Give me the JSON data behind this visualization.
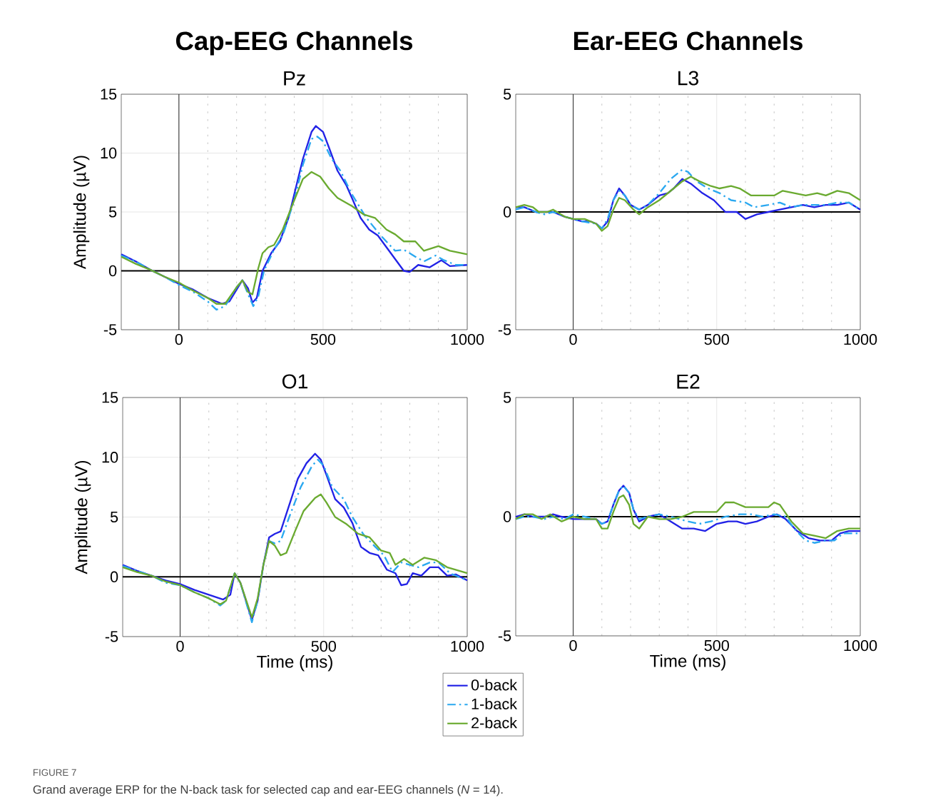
{
  "chart_data": [
    {
      "type": "line",
      "title": "Cap-EEG Channels",
      "subtitle": "Pz",
      "ylabel": "Amplitude (µV)",
      "xlim": [
        -200,
        1000
      ],
      "xticks": [
        0,
        500,
        1000
      ],
      "ylim": [
        -5,
        15
      ],
      "yticks": [
        -5,
        0,
        5,
        10,
        15
      ],
      "grid": true,
      "ref_lines": [
        {
          "axis": "x",
          "value": 0
        },
        {
          "axis": "y",
          "value": 0
        }
      ],
      "series": [
        {
          "color": "#2222e6",
          "line_style": "solid",
          "x": [
            -200,
            -150,
            -100,
            -50,
            0,
            50,
            100,
            150,
            175,
            200,
            220,
            240,
            255,
            270,
            290,
            320,
            350,
            380,
            400,
            430,
            460,
            475,
            500,
            520,
            550,
            580,
            600,
            630,
            660,
            690,
            720,
            750,
            780,
            800,
            830,
            870,
            910,
            940,
            1000
          ],
          "values": [
            1.4,
            0.8,
            0.1,
            -0.5,
            -1.1,
            -1.6,
            -2.3,
            -2.8,
            -2.6,
            -1.6,
            -0.8,
            -1.5,
            -2.7,
            -2.3,
            0.0,
            1.5,
            2.5,
            4.5,
            6.5,
            9.5,
            11.8,
            12.3,
            11.8,
            10.5,
            8.5,
            7.3,
            6.2,
            4.5,
            3.5,
            3.0,
            2.0,
            1.0,
            0.0,
            -0.1,
            0.5,
            0.3,
            0.9,
            0.4,
            0.5
          ]
        },
        {
          "color": "#2aa8f0",
          "line_style": "dashed",
          "x": [
            -200,
            -150,
            -100,
            -50,
            0,
            50,
            100,
            130,
            160,
            200,
            220,
            240,
            258,
            275,
            295,
            330,
            360,
            400,
            430,
            460,
            480,
            500,
            530,
            560,
            600,
            650,
            700,
            750,
            780,
            820,
            850,
            890,
            920,
            960,
            1000
          ],
          "values": [
            1.3,
            0.8,
            0.1,
            -0.5,
            -1.2,
            -1.8,
            -2.6,
            -3.3,
            -3.0,
            -1.4,
            -0.8,
            -2.0,
            -3.0,
            -2.2,
            0.0,
            1.8,
            3.0,
            6.0,
            9.0,
            11.2,
            11.4,
            11.0,
            9.5,
            8.5,
            6.5,
            4.5,
            3.0,
            1.7,
            1.8,
            1.2,
            0.8,
            1.3,
            0.9,
            0.5,
            0.5
          ]
        },
        {
          "color": "#6aaa30",
          "line_style": "solid",
          "x": [
            -200,
            -150,
            -100,
            -50,
            0,
            50,
            100,
            130,
            160,
            200,
            220,
            240,
            255,
            275,
            290,
            310,
            330,
            360,
            400,
            430,
            460,
            490,
            520,
            550,
            600,
            640,
            680,
            720,
            750,
            780,
            820,
            850,
            900,
            940,
            1000
          ],
          "values": [
            1.2,
            0.6,
            0.1,
            -0.5,
            -1.0,
            -1.7,
            -2.3,
            -2.8,
            -2.8,
            -1.4,
            -0.8,
            -1.8,
            -2.0,
            0.2,
            1.5,
            2.0,
            2.2,
            3.5,
            6.0,
            7.8,
            8.4,
            8.0,
            7.0,
            6.2,
            5.5,
            4.8,
            4.5,
            3.5,
            3.1,
            2.5,
            2.5,
            1.7,
            2.1,
            1.7,
            1.4
          ]
        }
      ]
    },
    {
      "type": "line",
      "title": "Ear-EEG Channels",
      "subtitle": "L3",
      "xlim": [
        -200,
        1000
      ],
      "xticks": [
        0,
        500,
        1000
      ],
      "ylim": [
        -5,
        5
      ],
      "yticks": [
        -5,
        0,
        5
      ],
      "grid": true,
      "ref_lines": [
        {
          "axis": "x",
          "value": 0
        },
        {
          "axis": "y",
          "value": 0
        }
      ],
      "series": [
        {
          "color": "#2222e6",
          "line_style": "solid",
          "x": [
            -200,
            -170,
            -130,
            -100,
            -70,
            -30,
            0,
            30,
            60,
            80,
            100,
            120,
            140,
            160,
            180,
            200,
            230,
            260,
            300,
            330,
            350,
            380,
            410,
            450,
            490,
            530,
            570,
            600,
            640,
            680,
            720,
            760,
            800,
            840,
            880,
            920,
            960,
            1000
          ],
          "values": [
            0.2,
            0.2,
            0.0,
            0.0,
            0.0,
            -0.2,
            -0.3,
            -0.4,
            -0.4,
            -0.5,
            -0.7,
            -0.4,
            0.5,
            1.0,
            0.7,
            0.3,
            0.1,
            0.3,
            0.7,
            0.8,
            1.0,
            1.4,
            1.2,
            0.8,
            0.5,
            0.0,
            0.0,
            -0.3,
            -0.1,
            0.0,
            0.1,
            0.2,
            0.3,
            0.2,
            0.3,
            0.3,
            0.4,
            0.1
          ]
        },
        {
          "color": "#2aa8f0",
          "line_style": "dashed",
          "x": [
            -200,
            -170,
            -130,
            -100,
            -70,
            -30,
            0,
            30,
            80,
            100,
            120,
            140,
            160,
            180,
            200,
            230,
            260,
            300,
            340,
            380,
            400,
            430,
            470,
            510,
            550,
            600,
            630,
            680,
            720,
            760,
            800,
            840,
            880,
            920,
            960,
            1000
          ],
          "values": [
            0.1,
            0.2,
            0.0,
            -0.1,
            0.0,
            -0.2,
            -0.3,
            -0.4,
            -0.5,
            -0.7,
            -0.3,
            0.5,
            0.9,
            0.7,
            0.3,
            0.1,
            0.3,
            0.8,
            1.4,
            1.8,
            1.7,
            1.3,
            1.0,
            0.8,
            0.5,
            0.4,
            0.2,
            0.3,
            0.4,
            0.2,
            0.3,
            0.3,
            0.3,
            0.4,
            0.4,
            0.1
          ]
        },
        {
          "color": "#6aaa30",
          "line_style": "solid",
          "x": [
            -200,
            -170,
            -140,
            -120,
            -90,
            -70,
            -30,
            0,
            40,
            80,
            100,
            120,
            140,
            160,
            180,
            210,
            230,
            260,
            300,
            350,
            380,
            410,
            440,
            480,
            510,
            550,
            580,
            620,
            660,
            700,
            730,
            770,
            810,
            850,
            880,
            920,
            960,
            1000
          ],
          "values": [
            0.2,
            0.3,
            0.2,
            0.0,
            0.0,
            0.1,
            -0.2,
            -0.3,
            -0.3,
            -0.5,
            -0.8,
            -0.6,
            0.1,
            0.6,
            0.5,
            0.1,
            -0.1,
            0.2,
            0.5,
            1.0,
            1.3,
            1.5,
            1.3,
            1.1,
            1.0,
            1.1,
            1.0,
            0.7,
            0.7,
            0.7,
            0.9,
            0.8,
            0.7,
            0.8,
            0.7,
            0.9,
            0.8,
            0.5
          ]
        }
      ]
    },
    {
      "type": "line",
      "subtitle": "O1",
      "xlabel": "Time (ms)",
      "ylabel": "Amplitude (µV)",
      "xlim": [
        -200,
        1000
      ],
      "xticks": [
        0,
        500,
        1000
      ],
      "ylim": [
        -5,
        15
      ],
      "yticks": [
        -5,
        0,
        5,
        10,
        15
      ],
      "grid": true,
      "legend": "bottom",
      "ref_lines": [
        {
          "axis": "x",
          "value": 0
        },
        {
          "axis": "y",
          "value": 0
        }
      ],
      "series": [
        {
          "name": "0-back",
          "color": "#2222e6",
          "line_style": "solid",
          "x": [
            -200,
            -150,
            -100,
            -50,
            0,
            50,
            100,
            150,
            175,
            190,
            210,
            250,
            270,
            290,
            310,
            330,
            350,
            380,
            410,
            440,
            470,
            490,
            510,
            540,
            570,
            600,
            630,
            660,
            690,
            720,
            750,
            770,
            790,
            810,
            840,
            870,
            900,
            930,
            960,
            1000
          ],
          "values": [
            1.0,
            0.5,
            0.1,
            -0.3,
            -0.6,
            -1.1,
            -1.5,
            -1.9,
            -1.5,
            0.3,
            -0.5,
            -3.6,
            -2.0,
            1.0,
            3.3,
            3.6,
            3.8,
            6.0,
            8.2,
            9.5,
            10.3,
            9.8,
            8.5,
            6.5,
            5.8,
            4.5,
            2.5,
            2.0,
            1.8,
            0.6,
            0.3,
            -0.7,
            -0.6,
            0.3,
            0.1,
            0.8,
            0.8,
            0.1,
            0.2,
            -0.3
          ]
        },
        {
          "name": "1-back",
          "color": "#2aa8f0",
          "line_style": "dashed",
          "x": [
            -200,
            -150,
            -100,
            -50,
            0,
            50,
            100,
            140,
            160,
            190,
            210,
            250,
            270,
            290,
            310,
            330,
            350,
            380,
            420,
            460,
            480,
            500,
            530,
            570,
            600,
            640,
            680,
            710,
            740,
            770,
            800,
            830,
            870,
            900,
            940,
            1000
          ],
          "values": [
            0.9,
            0.5,
            0.1,
            -0.5,
            -0.7,
            -1.3,
            -1.8,
            -2.4,
            -2.0,
            0.3,
            -0.5,
            -3.8,
            -2.0,
            1.0,
            3.0,
            2.8,
            3.0,
            5.0,
            7.5,
            9.3,
            9.8,
            9.3,
            7.5,
            6.5,
            5.0,
            3.5,
            2.5,
            1.8,
            0.4,
            1.2,
            1.0,
            0.8,
            1.2,
            1.2,
            0.3,
            -0.3
          ]
        },
        {
          "name": "2-back",
          "color": "#6aaa30",
          "line_style": "solid",
          "x": [
            -200,
            -150,
            -100,
            -50,
            0,
            50,
            100,
            140,
            160,
            190,
            210,
            250,
            270,
            290,
            310,
            330,
            350,
            370,
            400,
            430,
            470,
            490,
            510,
            540,
            580,
            620,
            660,
            700,
            730,
            750,
            780,
            810,
            850,
            890,
            930,
            1000
          ],
          "values": [
            0.8,
            0.4,
            0.1,
            -0.4,
            -0.7,
            -1.3,
            -1.8,
            -2.3,
            -2.0,
            0.3,
            -0.5,
            -3.4,
            -1.8,
            1.0,
            3.0,
            2.6,
            1.8,
            2.0,
            3.8,
            5.5,
            6.6,
            6.9,
            6.2,
            5.0,
            4.4,
            3.6,
            3.3,
            2.2,
            2.0,
            1.0,
            1.5,
            1.0,
            1.6,
            1.4,
            0.8,
            0.3
          ]
        }
      ]
    },
    {
      "type": "line",
      "subtitle": "E2",
      "xlabel": "Time (ms)",
      "xlim": [
        -200,
        1000
      ],
      "xticks": [
        0,
        500,
        1000
      ],
      "ylim": [
        -5,
        5
      ],
      "yticks": [
        -5,
        0,
        5
      ],
      "grid": true,
      "ref_lines": [
        {
          "axis": "x",
          "value": 0
        },
        {
          "axis": "y",
          "value": 0
        }
      ],
      "annotations": [
        "FIGURE 7",
        "Grand average ERP for the N-back task for selected cap and ear-EEG channels (*N* = 14)."
      ],
      "series": [
        {
          "color": "#2222e6",
          "line_style": "solid",
          "x": [
            -200,
            -170,
            -140,
            -100,
            -70,
            -40,
            0,
            40,
            80,
            100,
            120,
            140,
            160,
            175,
            195,
            210,
            230,
            260,
            300,
            340,
            380,
            420,
            460,
            500,
            540,
            570,
            600,
            640,
            680,
            710,
            740,
            780,
            820,
            860,
            900,
            930,
            960,
            1000
          ],
          "values": [
            0.0,
            0.1,
            0.0,
            0.0,
            0.1,
            0.0,
            -0.1,
            -0.1,
            -0.1,
            -0.3,
            -0.2,
            0.5,
            1.1,
            1.3,
            1.0,
            0.3,
            -0.2,
            0.0,
            0.1,
            -0.2,
            -0.5,
            -0.5,
            -0.6,
            -0.3,
            -0.2,
            -0.2,
            -0.3,
            -0.2,
            0.0,
            0.1,
            -0.1,
            -0.6,
            -0.9,
            -1.0,
            -1.0,
            -0.7,
            -0.6,
            -0.6
          ]
        },
        {
          "color": "#2aa8f0",
          "line_style": "dashed",
          "x": [
            -200,
            -170,
            -140,
            -100,
            -70,
            -30,
            0,
            40,
            80,
            100,
            120,
            140,
            160,
            175,
            195,
            210,
            230,
            260,
            300,
            340,
            400,
            440,
            480,
            530,
            580,
            620,
            660,
            700,
            740,
            770,
            810,
            840,
            880,
            910,
            940,
            1000
          ],
          "values": [
            -0.1,
            0.0,
            0.0,
            -0.1,
            0.0,
            -0.1,
            0.1,
            0.0,
            -0.1,
            -0.3,
            -0.2,
            0.5,
            1.1,
            1.3,
            1.0,
            0.3,
            -0.1,
            0.0,
            0.1,
            0.0,
            -0.2,
            -0.3,
            -0.2,
            0.0,
            0.1,
            0.1,
            0.0,
            0.1,
            0.0,
            -0.5,
            -1.0,
            -1.1,
            -1.0,
            -1.0,
            -0.7,
            -0.7
          ]
        },
        {
          "color": "#6aaa30",
          "line_style": "solid",
          "x": [
            -200,
            -170,
            -140,
            -110,
            -80,
            -40,
            0,
            40,
            80,
            100,
            120,
            140,
            160,
            175,
            195,
            210,
            230,
            260,
            300,
            340,
            380,
            420,
            460,
            500,
            530,
            560,
            600,
            640,
            680,
            700,
            720,
            760,
            800,
            840,
            880,
            920,
            960,
            1000
          ],
          "values": [
            -0.1,
            0.1,
            0.1,
            -0.1,
            0.1,
            -0.2,
            0.0,
            -0.1,
            -0.1,
            -0.5,
            -0.5,
            0.2,
            0.8,
            0.9,
            0.5,
            -0.3,
            -0.5,
            0.0,
            -0.1,
            -0.1,
            0.0,
            0.2,
            0.2,
            0.2,
            0.6,
            0.6,
            0.4,
            0.4,
            0.4,
            0.6,
            0.5,
            -0.2,
            -0.7,
            -0.8,
            -0.9,
            -0.6,
            -0.5,
            -0.5
          ]
        }
      ]
    }
  ]
}
